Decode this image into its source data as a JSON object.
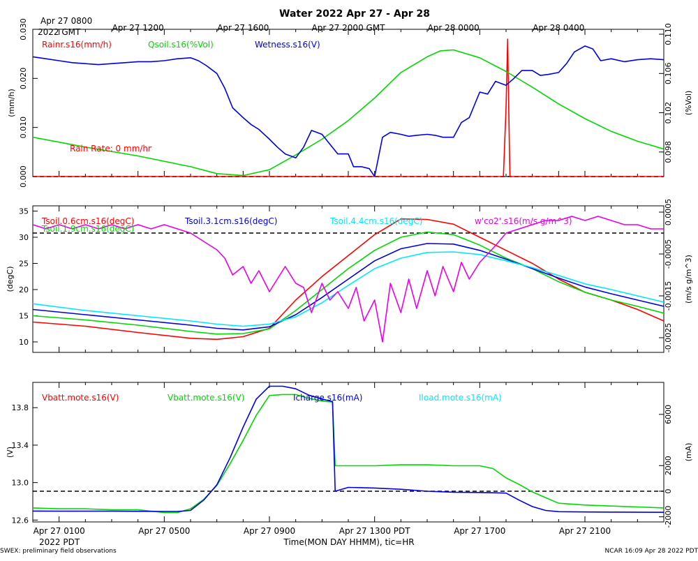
{
  "title": "Water 2022 Apr 27 - Apr 28",
  "top_time": {
    "first": [
      "Apr 27 0800",
      "2022 GMT"
    ],
    "ticks": [
      "Apr 27 1200",
      "Apr 27 1600",
      "Apr 27 2000 GMT",
      "Apr 28 0000",
      "Apr 28 0400"
    ]
  },
  "bottom_time": {
    "ticks": [
      "Apr 27 0100",
      "Apr 27 0500",
      "Apr 27 0900",
      "Apr 27 1300 PDT",
      "Apr 27 1700",
      "Apr 27 2100"
    ],
    "year": "2022 PDT",
    "xlabel": "Time(MON DAY HHMM), tic=HR"
  },
  "footer": {
    "left": "SWEX: preliminary field observations",
    "right": "NCAR 16:09 Apr 28 2022 PDT"
  },
  "colors": {
    "red": "#ff0000",
    "green": "#00d800",
    "blue": "#0000e0",
    "cyan": "#00e8ff",
    "magenta": "#e800e8",
    "black": "#000000"
  },
  "chart_data": [
    {
      "type": "line",
      "x_units": "hours since Apr 27 0000 PDT",
      "xlim": [
        0,
        24
      ],
      "left_axis": {
        "label": "(mm/h)",
        "ylim": [
          0,
          0.03
        ],
        "ticks": [
          "0.000",
          "0.010",
          "0.020",
          "0.030"
        ]
      },
      "right_axis": {
        "label": "(%Vol)",
        "ylim": [
          0.0955,
          0.1105
        ],
        "ticks": [
          "0.098",
          "0.102",
          "0.106",
          "0.110"
        ]
      },
      "annotation": "Rain Rate: 0 mm/hr",
      "reference_line": {
        "axis": "left",
        "value": 0
      },
      "series": [
        {
          "name": "Rainr.s16(mm/h)",
          "color": "red",
          "axis": "left",
          "x": [
            0,
            17.9,
            18.0,
            18.06,
            18.1,
            18.15,
            24
          ],
          "y": [
            0,
            0,
            0.014,
            0.028,
            0.014,
            0,
            0
          ]
        },
        {
          "name": "Qsoil.s16(%Vol)",
          "color": "green",
          "axis": "right",
          "x": [
            0,
            2,
            4,
            6,
            7,
            8,
            9,
            10,
            11,
            12,
            13,
            14,
            15,
            15.5,
            16,
            17,
            18,
            19,
            20,
            21,
            22,
            23,
            24
          ],
          "y": [
            0.0995,
            0.0985,
            0.0976,
            0.0965,
            0.0958,
            0.0956,
            0.0962,
            0.0977,
            0.0993,
            0.1012,
            0.1035,
            0.1061,
            0.1077,
            0.1083,
            0.1084,
            0.1076,
            0.1062,
            0.1046,
            0.1029,
            0.1014,
            0.1001,
            0.0991,
            0.0983
          ]
        },
        {
          "name": "Wetness.s16(V)",
          "color": "blue",
          "axis": "right",
          "x": [
            0,
            0.5,
            1,
            1.5,
            2,
            2.5,
            3,
            3.5,
            4,
            4.5,
            5,
            5.5,
            6,
            6.3,
            6.6,
            7,
            7.3,
            7.6,
            8,
            8.3,
            8.6,
            9,
            9.3,
            9.6,
            10,
            10.3,
            10.6,
            11,
            11.3,
            11.6,
            12,
            12.2,
            12.5,
            12.8,
            13,
            13.3,
            13.6,
            14,
            14.3,
            14.6,
            15,
            15.3,
            15.6,
            16,
            16.3,
            16.6,
            17,
            17.3,
            17.6,
            18,
            18.3,
            18.6,
            19,
            19.3,
            19.6,
            20,
            20.3,
            20.6,
            21,
            21.3,
            21.6,
            22,
            22.5,
            23,
            23.5,
            24
          ],
          "y": [
            0.1077,
            0.1075,
            0.1073,
            0.1071,
            0.107,
            0.1069,
            0.107,
            0.1071,
            0.1072,
            0.1072,
            0.1073,
            0.1075,
            0.1076,
            0.1073,
            0.1068,
            0.106,
            0.1045,
            0.1025,
            0.1015,
            0.1008,
            0.1003,
            0.0993,
            0.0985,
            0.0978,
            0.0974,
            0.0985,
            0.1002,
            0.0998,
            0.0988,
            0.0978,
            0.0978,
            0.0965,
            0.0965,
            0.0963,
            0.0955,
            0.0995,
            0.1,
            0.0998,
            0.0996,
            0.0997,
            0.0998,
            0.0997,
            0.0995,
            0.0995,
            0.101,
            0.1015,
            0.1041,
            0.1039,
            0.1052,
            0.1048,
            0.1055,
            0.1063,
            0.1063,
            0.1058,
            0.1059,
            0.1061,
            0.107,
            0.1082,
            0.1088,
            0.1085,
            0.1073,
            0.1075,
            0.1072,
            0.1074,
            0.1075,
            0.1074
          ]
        }
      ]
    },
    {
      "type": "line",
      "x_units": "hours since Apr 27 0000 PDT",
      "xlim": [
        0,
        24
      ],
      "left_axis": {
        "label": "(degC)",
        "ylim": [
          8,
          36
        ],
        "ticks": [
          "10",
          "15",
          "20",
          "25",
          "30",
          "35"
        ]
      },
      "right_axis": {
        "label": "(m/s g/m^3)",
        "ylim": [
          -0.00285,
          0.00065
        ],
        "ticks": [
          "-0.0025",
          "-0.0015",
          "-0.0005",
          "0.0005"
        ]
      },
      "reference_line": {
        "axis": "right",
        "value": 0
      },
      "series": [
        {
          "name": "Tsoil.0.6cm.s16(degC)",
          "color": "red",
          "axis": "left",
          "x": [
            0,
            2,
            4,
            6,
            7,
            8,
            9,
            10,
            11,
            12,
            13,
            14,
            15,
            16,
            17,
            18,
            19,
            20,
            21,
            22,
            23,
            24
          ],
          "y": [
            13.8,
            13,
            11.8,
            10.7,
            10.5,
            11,
            12.6,
            18,
            22.5,
            26.5,
            30.5,
            33.5,
            33.4,
            32.5,
            30,
            27.5,
            25,
            22,
            19.5,
            18,
            16.2,
            14
          ]
        },
        {
          "name": "Tsoil.1.9cm.s16(degC)",
          "color": "green",
          "axis": "left",
          "x": [
            0,
            2,
            4,
            6,
            7,
            8,
            9,
            10,
            11,
            12,
            13,
            14,
            15,
            16,
            17,
            18,
            19,
            20,
            21,
            22,
            23,
            24
          ],
          "y": [
            15,
            14.2,
            13.2,
            12,
            11.5,
            11.6,
            12.5,
            16,
            20,
            24,
            27.5,
            30,
            31,
            30.5,
            28.5,
            26,
            24,
            21.5,
            19.5,
            18,
            16.8,
            15.5
          ]
        },
        {
          "name": "Tsoil.3.1cm.s16(degC)",
          "color": "blue",
          "axis": "left",
          "x": [
            0,
            2,
            4,
            6,
            7,
            8,
            9,
            10,
            11,
            12,
            13,
            14,
            15,
            16,
            17,
            18,
            19,
            20,
            21,
            22,
            23,
            24
          ],
          "y": [
            16.2,
            15.2,
            14.2,
            13.2,
            12.6,
            12.3,
            12.9,
            15.2,
            18.5,
            22,
            25.5,
            27.8,
            28.8,
            28.7,
            27.5,
            25.8,
            24,
            22.2,
            20.5,
            19.2,
            18,
            16.8
          ]
        },
        {
          "name": "Tsoil.4.4cm.s16(degC)",
          "color": "cyan",
          "axis": "left",
          "x": [
            0,
            2,
            4,
            6,
            7,
            8,
            9,
            10,
            11,
            12,
            13,
            14,
            15,
            16,
            17,
            18,
            19,
            20,
            21,
            22,
            23,
            24
          ],
          "y": [
            17.3,
            16,
            15,
            14,
            13.4,
            13,
            13.4,
            14.8,
            17.5,
            20.8,
            24,
            26,
            27.1,
            27.2,
            26.7,
            25.5,
            24.2,
            22.7,
            21.1,
            20,
            18.8,
            17.6
          ]
        },
        {
          "name": "w'co2'.s16(m/s g/m^3)",
          "color": "magenta",
          "axis": "right",
          "x": [
            0,
            0.5,
            1,
            1.5,
            2,
            2.5,
            3,
            3.5,
            4,
            4.5,
            5,
            5.5,
            6,
            6.5,
            7,
            7.3,
            7.6,
            8,
            8.3,
            8.6,
            9,
            9.3,
            9.6,
            10,
            10.3,
            10.6,
            11,
            11.3,
            11.6,
            12,
            12.3,
            12.6,
            13,
            13.3,
            13.6,
            14,
            14.3,
            14.6,
            15,
            15.3,
            15.6,
            16,
            16.3,
            16.6,
            17,
            17.3,
            17.6,
            18,
            18.5,
            19,
            19.5,
            20,
            20.5,
            21,
            21.5,
            22,
            22.5,
            23,
            23.5,
            24
          ],
          "y": [
            0.0002,
            0.0001,
            0.0002,
            0.0001,
            0.0002,
            0.0001,
            0.0002,
            0.0001,
            0.0002,
            0.0001,
            0.0002,
            0.0001,
            0.0,
            -0.0002,
            -0.0004,
            -0.0006,
            -0.001,
            -0.0008,
            -0.0012,
            -0.0009,
            -0.0014,
            -0.0011,
            -0.0008,
            -0.0012,
            -0.0013,
            -0.0019,
            -0.0012,
            -0.0016,
            -0.0014,
            -0.0018,
            -0.0013,
            -0.0021,
            -0.0016,
            -0.0026,
            -0.0012,
            -0.0019,
            -0.0011,
            -0.0018,
            -0.0009,
            -0.0015,
            -0.0008,
            -0.0014,
            -0.0007,
            -0.0011,
            -0.0007,
            -0.0005,
            -0.0003,
            0.0,
            0.0001,
            0.0002,
            0.0003,
            0.0003,
            0.0004,
            0.0003,
            0.0004,
            0.0003,
            0.0002,
            0.0002,
            0.0001,
            0.0001
          ]
        }
      ]
    },
    {
      "type": "line",
      "x_units": "hours since Apr 27 0000 PDT",
      "xlim": [
        0,
        24
      ],
      "left_axis": {
        "label": "(V)",
        "ylim": [
          12.58,
          14.07
        ],
        "ticks": [
          "12.6",
          "13.0",
          "13.4",
          "13.8"
        ]
      },
      "right_axis": {
        "label": "(mA)",
        "ylim": [
          -2400,
          8500
        ],
        "ticks": [
          "-2000",
          "0",
          "2000",
          "6000"
        ]
      },
      "reference_line": {
        "axis": "right",
        "value": 0
      },
      "series": [
        {
          "name": "Vbatt.mote.s16(V)",
          "color": "red",
          "axis": "left",
          "x": [],
          "y": []
        },
        {
          "name": "Vbatt.mote.s16(V)",
          "color": "green",
          "axis": "left",
          "x": [
            0,
            1,
            2,
            3,
            4,
            5,
            5.5,
            6,
            6.5,
            7,
            7.5,
            8,
            8.5,
            9,
            9.5,
            10,
            10.5,
            11,
            11.4,
            11.5,
            12,
            13,
            14,
            15,
            16,
            17,
            17.5,
            18,
            18.5,
            19,
            19.5,
            20,
            21,
            22,
            23,
            24
          ],
          "y": [
            12.73,
            12.72,
            12.72,
            12.71,
            12.71,
            12.68,
            12.68,
            12.72,
            12.82,
            12.97,
            13.2,
            13.45,
            13.72,
            13.93,
            13.94,
            13.94,
            13.9,
            13.87,
            13.86,
            13.18,
            13.18,
            13.18,
            13.19,
            13.19,
            13.18,
            13.18,
            13.15,
            13.05,
            12.98,
            12.9,
            12.84,
            12.78,
            12.76,
            12.75,
            12.74,
            12.73
          ]
        },
        {
          "name": "Icharge.s16(mA)",
          "color": "blue",
          "axis": "right",
          "x": [
            0,
            1,
            2,
            3,
            4,
            5,
            5.5,
            6,
            6.5,
            7,
            7.5,
            8,
            8.5,
            9,
            9.5,
            10,
            10.5,
            11,
            11.4,
            11.5,
            12,
            13,
            14,
            15,
            16,
            17,
            17.5,
            18,
            18.5,
            19,
            19.5,
            20,
            21,
            22,
            23,
            24
          ],
          "y": [
            -1550,
            -1560,
            -1560,
            -1560,
            -1570,
            -1580,
            -1580,
            -1500,
            -700,
            500,
            2600,
            5000,
            7200,
            8200,
            8200,
            8000,
            7500,
            7200,
            7000,
            0,
            300,
            250,
            150,
            0,
            -80,
            -100,
            -120,
            -150,
            -700,
            -1200,
            -1500,
            -1600,
            -1620,
            -1630,
            -1640,
            -1650
          ]
        },
        {
          "name": "Iload.mote.s16(mA)",
          "color": "cyan",
          "axis": "right",
          "x": [],
          "y": []
        }
      ]
    }
  ]
}
